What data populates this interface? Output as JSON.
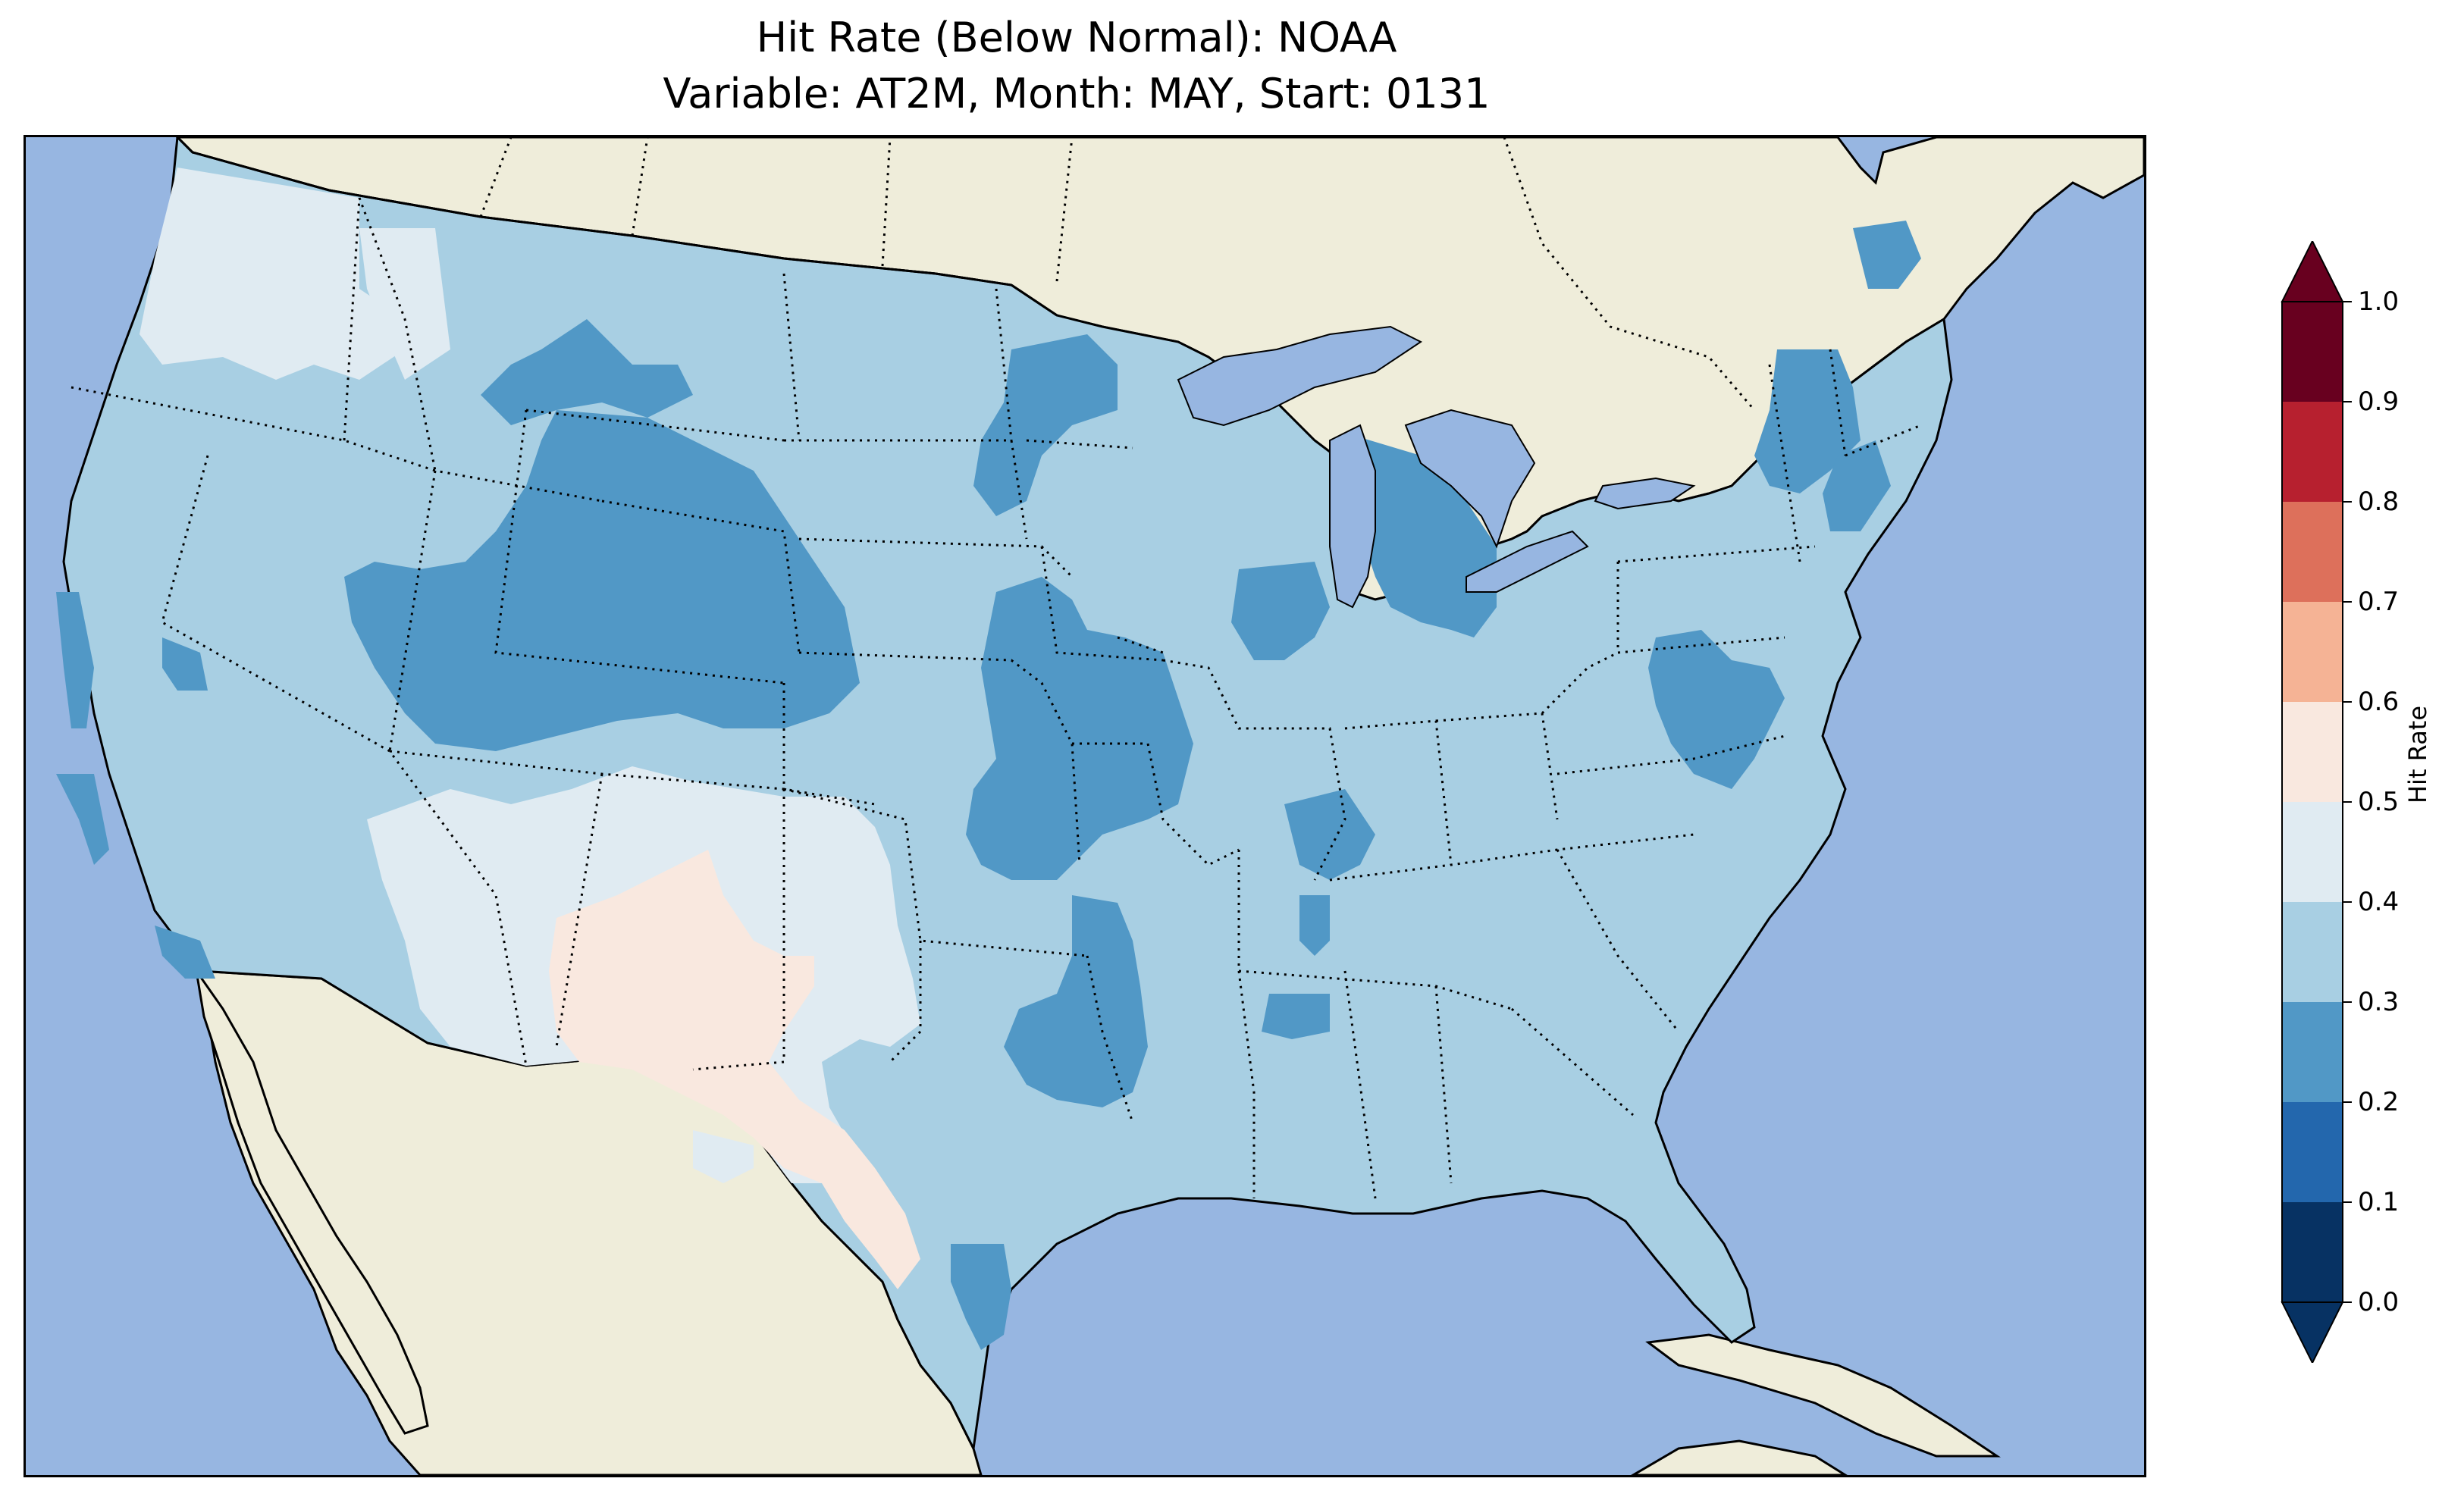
{
  "title": {
    "line1": "Hit Rate (Below Normal): NOAA",
    "line2": "Variable: AT2M, Month: MAY, Start: 0131"
  },
  "colors": {
    "ocean": "#97b6e1",
    "land": "#efedda",
    "lakes": "#97b6e1"
  },
  "colorbar": {
    "label": "Hit Rate",
    "ticks": [
      "0.0",
      "0.1",
      "0.2",
      "0.3",
      "0.4",
      "0.5",
      "0.6",
      "0.7",
      "0.8",
      "0.9",
      "1.0"
    ],
    "bins": [
      {
        "range": [
          0.0,
          0.1
        ],
        "color": "#073263"
      },
      {
        "range": [
          0.1,
          0.2
        ],
        "color": "#2367ad"
      },
      {
        "range": [
          0.2,
          0.3
        ],
        "color": "#5198c6"
      },
      {
        "range": [
          0.3,
          0.4
        ],
        "color": "#a8cfe3"
      },
      {
        "range": [
          0.4,
          0.5
        ],
        "color": "#e0ebf2"
      },
      {
        "range": [
          0.5,
          0.6
        ],
        "color": "#f9e8df"
      },
      {
        "range": [
          0.6,
          0.7
        ],
        "color": "#f5b395"
      },
      {
        "range": [
          0.7,
          0.8
        ],
        "color": "#dd705b"
      },
      {
        "range": [
          0.8,
          0.9
        ],
        "color": "#b7202f"
      },
      {
        "range": [
          0.9,
          1.0
        ],
        "color": "#68001f"
      }
    ],
    "extend": "both"
  },
  "map_regions": [
    {
      "region": "Contiguous United States (background)",
      "value_bin": "0.3-0.4"
    },
    {
      "region": "Northern Washington / Oregon coast and Idaho panhandle",
      "value_bin": "0.4-0.5"
    },
    {
      "region": "Montana / Idaho / Wyoming",
      "value_bin": "0.2-0.3"
    },
    {
      "region": "Utah / Colorado / Wyoming",
      "value_bin": "0.2-0.3"
    },
    {
      "region": "Northern Arizona / New Mexico / West Texas",
      "value_bin": "0.4-0.5"
    },
    {
      "region": "Southern New Mexico / West Texas",
      "value_bin": "0.5-0.6"
    },
    {
      "region": "Kansas / Nebraska / Iowa / Missouri",
      "value_bin": "0.2-0.3"
    },
    {
      "region": "Oklahoma / North Texas",
      "value_bin": "0.2-0.3"
    },
    {
      "region": "South Texas coast",
      "value_bin": "0.2-0.3"
    },
    {
      "region": "Michigan / Great Lakes",
      "value_bin": "0.2-0.3"
    },
    {
      "region": "Virginia / Maryland",
      "value_bin": "0.2-0.3"
    },
    {
      "region": "Northern New England",
      "value_bin": "0.2-0.3"
    },
    {
      "region": "North Dakota / South Dakota / Minnesota",
      "value_bin": "0.2-0.3"
    },
    {
      "region": "California coast",
      "value_bin": "0.2-0.3"
    }
  ]
}
